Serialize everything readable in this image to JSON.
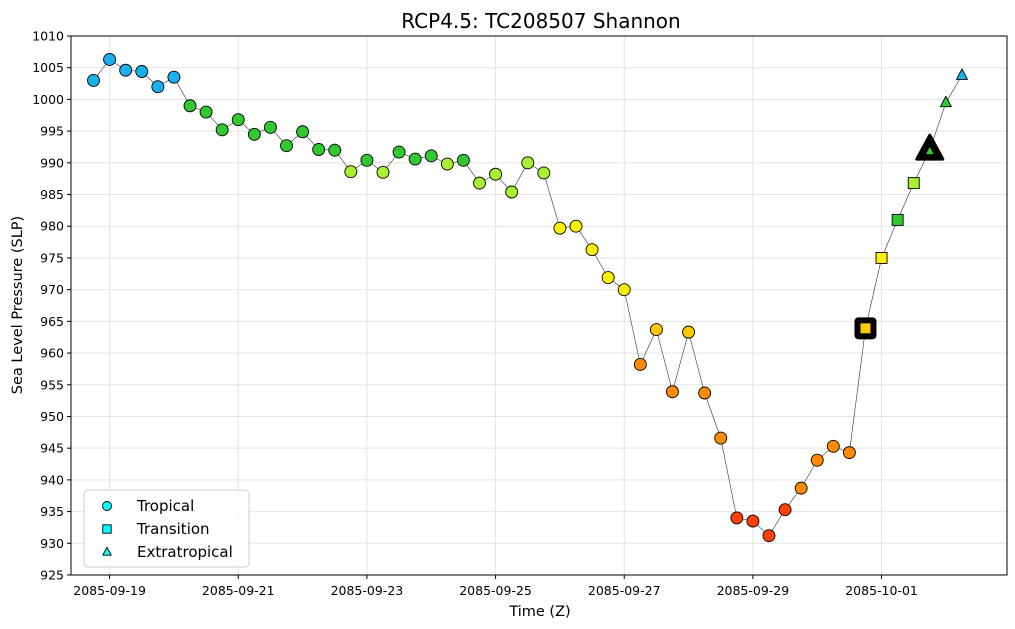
{
  "chart_data": {
    "type": "scatter",
    "title": "RCP4.5: TC208507 Shannon",
    "xlabel": "Time (Z)",
    "ylabel": "Sea Level Pressure (SLP)",
    "ylim": [
      925,
      1010
    ],
    "yticks": [
      925,
      930,
      935,
      940,
      945,
      950,
      955,
      960,
      965,
      970,
      975,
      980,
      985,
      990,
      995,
      1000,
      1005,
      1010
    ],
    "xlim": [
      -0.6,
      13.95
    ],
    "xticks": [
      {
        "day": 0,
        "label": "2085-09-19"
      },
      {
        "day": 2,
        "label": "2085-09-21"
      },
      {
        "day": 4,
        "label": "2085-09-23"
      },
      {
        "day": 6,
        "label": "2085-09-25"
      },
      {
        "day": 8,
        "label": "2085-09-27"
      },
      {
        "day": 10,
        "label": "2085-09-29"
      },
      {
        "day": 12,
        "label": "2085-10-01"
      }
    ],
    "grid": true,
    "legend": {
      "position": "lower-left",
      "entries": [
        {
          "label": "Tropical",
          "marker": "circle",
          "color": "#00ffff"
        },
        {
          "label": "Transition",
          "marker": "square",
          "color": "#00ffff"
        },
        {
          "label": "Extratropical",
          "marker": "triangle",
          "color": "#00ffff"
        }
      ]
    },
    "category_colors": {
      "TD": "#1ab0f0",
      "TS": "#32c832",
      "C1": "#aaf032",
      "C2": "#fff000",
      "C3": "#ffc800",
      "C4": "#ff8c00",
      "C5": "#ff4000"
    },
    "points": [
      {
        "t": -0.25,
        "slp": 1003.0,
        "phase": "tropical",
        "cat": "TD"
      },
      {
        "t": 0.0,
        "slp": 1006.3,
        "phase": "tropical",
        "cat": "TD"
      },
      {
        "t": 0.25,
        "slp": 1004.6,
        "phase": "tropical",
        "cat": "TD"
      },
      {
        "t": 0.5,
        "slp": 1004.4,
        "phase": "tropical",
        "cat": "TD"
      },
      {
        "t": 0.75,
        "slp": 1002.0,
        "phase": "tropical",
        "cat": "TD"
      },
      {
        "t": 1.0,
        "slp": 1003.5,
        "phase": "tropical",
        "cat": "TD"
      },
      {
        "t": 1.25,
        "slp": 999.0,
        "phase": "tropical",
        "cat": "TS"
      },
      {
        "t": 1.5,
        "slp": 998.0,
        "phase": "tropical",
        "cat": "TS"
      },
      {
        "t": 1.75,
        "slp": 995.2,
        "phase": "tropical",
        "cat": "TS"
      },
      {
        "t": 2.0,
        "slp": 996.8,
        "phase": "tropical",
        "cat": "TS"
      },
      {
        "t": 2.25,
        "slp": 994.5,
        "phase": "tropical",
        "cat": "TS"
      },
      {
        "t": 2.5,
        "slp": 995.6,
        "phase": "tropical",
        "cat": "TS"
      },
      {
        "t": 2.75,
        "slp": 992.7,
        "phase": "tropical",
        "cat": "TS"
      },
      {
        "t": 3.0,
        "slp": 994.9,
        "phase": "tropical",
        "cat": "TS"
      },
      {
        "t": 3.25,
        "slp": 992.1,
        "phase": "tropical",
        "cat": "TS"
      },
      {
        "t": 3.5,
        "slp": 992.0,
        "phase": "tropical",
        "cat": "TS"
      },
      {
        "t": 3.75,
        "slp": 988.6,
        "phase": "tropical",
        "cat": "C1"
      },
      {
        "t": 4.0,
        "slp": 990.4,
        "phase": "tropical",
        "cat": "TS"
      },
      {
        "t": 4.25,
        "slp": 988.5,
        "phase": "tropical",
        "cat": "C1"
      },
      {
        "t": 4.5,
        "slp": 991.7,
        "phase": "tropical",
        "cat": "TS"
      },
      {
        "t": 4.75,
        "slp": 990.6,
        "phase": "tropical",
        "cat": "TS"
      },
      {
        "t": 5.0,
        "slp": 991.1,
        "phase": "tropical",
        "cat": "TS"
      },
      {
        "t": 5.25,
        "slp": 989.8,
        "phase": "tropical",
        "cat": "C1"
      },
      {
        "t": 5.5,
        "slp": 990.4,
        "phase": "tropical",
        "cat": "TS"
      },
      {
        "t": 5.75,
        "slp": 986.8,
        "phase": "tropical",
        "cat": "C1"
      },
      {
        "t": 6.0,
        "slp": 988.2,
        "phase": "tropical",
        "cat": "C1"
      },
      {
        "t": 6.25,
        "slp": 985.4,
        "phase": "tropical",
        "cat": "C1"
      },
      {
        "t": 6.5,
        "slp": 990.0,
        "phase": "tropical",
        "cat": "C1"
      },
      {
        "t": 6.75,
        "slp": 988.4,
        "phase": "tropical",
        "cat": "C1"
      },
      {
        "t": 7.0,
        "slp": 979.7,
        "phase": "tropical",
        "cat": "C2"
      },
      {
        "t": 7.25,
        "slp": 980.0,
        "phase": "tropical",
        "cat": "C2"
      },
      {
        "t": 7.5,
        "slp": 976.3,
        "phase": "tropical",
        "cat": "C2"
      },
      {
        "t": 7.75,
        "slp": 971.9,
        "phase": "tropical",
        "cat": "C2"
      },
      {
        "t": 8.0,
        "slp": 970.0,
        "phase": "tropical",
        "cat": "C2"
      },
      {
        "t": 8.25,
        "slp": 958.2,
        "phase": "tropical",
        "cat": "C4"
      },
      {
        "t": 8.5,
        "slp": 963.7,
        "phase": "tropical",
        "cat": "C3"
      },
      {
        "t": 8.75,
        "slp": 953.9,
        "phase": "tropical",
        "cat": "C4"
      },
      {
        "t": 9.0,
        "slp": 963.3,
        "phase": "tropical",
        "cat": "C3"
      },
      {
        "t": 9.25,
        "slp": 953.7,
        "phase": "tropical",
        "cat": "C4"
      },
      {
        "t": 9.5,
        "slp": 946.6,
        "phase": "tropical",
        "cat": "C4"
      },
      {
        "t": 9.75,
        "slp": 934.0,
        "phase": "tropical",
        "cat": "C5"
      },
      {
        "t": 10.0,
        "slp": 933.5,
        "phase": "tropical",
        "cat": "C5"
      },
      {
        "t": 10.25,
        "slp": 931.2,
        "phase": "tropical",
        "cat": "C5"
      },
      {
        "t": 10.5,
        "slp": 935.3,
        "phase": "tropical",
        "cat": "C5"
      },
      {
        "t": 10.75,
        "slp": 938.7,
        "phase": "tropical",
        "cat": "C4"
      },
      {
        "t": 11.0,
        "slp": 943.1,
        "phase": "tropical",
        "cat": "C4"
      },
      {
        "t": 11.25,
        "slp": 945.3,
        "phase": "tropical",
        "cat": "C4"
      },
      {
        "t": 11.5,
        "slp": 944.3,
        "phase": "tropical",
        "cat": "C4"
      },
      {
        "t": 11.75,
        "slp": 963.9,
        "phase": "transition",
        "cat": "C3",
        "highlight": true
      },
      {
        "t": 12.0,
        "slp": 975.0,
        "phase": "transition",
        "cat": "C2"
      },
      {
        "t": 12.25,
        "slp": 981.0,
        "phase": "transition",
        "cat": "TS"
      },
      {
        "t": 12.5,
        "slp": 986.8,
        "phase": "transition",
        "cat": "C1"
      },
      {
        "t": 12.75,
        "slp": 992.0,
        "phase": "extratropical",
        "cat": "TS",
        "highlight": true
      },
      {
        "t": 13.0,
        "slp": 999.5,
        "phase": "extratropical",
        "cat": "TS"
      },
      {
        "t": 13.25,
        "slp": 1003.8,
        "phase": "extratropical",
        "cat": "TD"
      }
    ]
  }
}
